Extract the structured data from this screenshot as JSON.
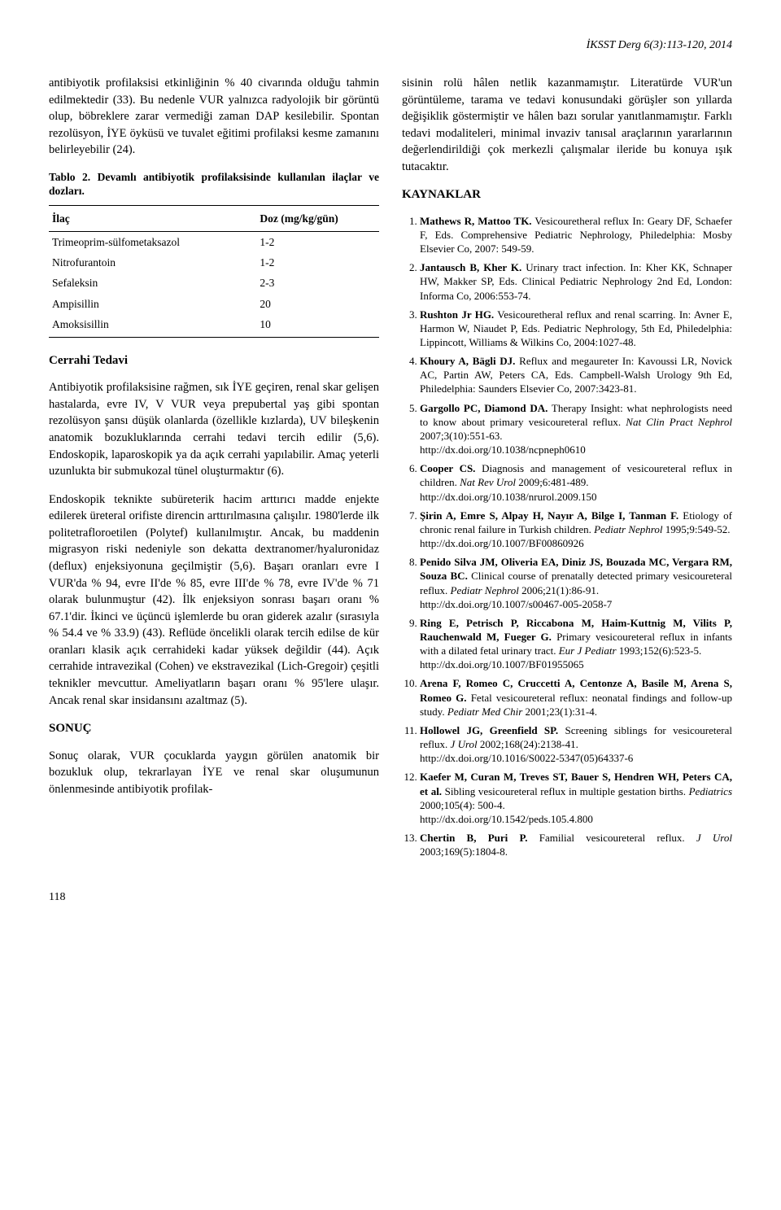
{
  "running_head": "İKSST Derg 6(3):113-120, 2014",
  "page_number": "118",
  "left": {
    "para1": "antibiyotik profilaksisi etkinliğinin % 40 civarında olduğu tahmin edilmektedir (33). Bu nedenle VUR yalnızca radyolojik bir görüntü olup, böbreklere zarar vermediği zaman DAP kesilebilir. Spontan rezolüsyon, İYE öyküsü ve tuvalet eğitimi profilaksi kesme zamanını belirleyebilir (24).",
    "table_caption": "Tablo 2. Devamlı antibiyotik profilaksisinde kullanılan ilaçlar ve dozları.",
    "table": {
      "col1_header": "İlaç",
      "col2_header": "Doz (mg/kg/gün)",
      "rows": [
        {
          "drug": "Trimeoprim-sülfometaksazol",
          "dose": "1-2"
        },
        {
          "drug": "Nitrofurantoin",
          "dose": "1-2"
        },
        {
          "drug": "Sefaleksin",
          "dose": "2-3"
        },
        {
          "drug": "Ampisillin",
          "dose": "20"
        },
        {
          "drug": "Amoksisillin",
          "dose": "10"
        }
      ]
    },
    "heading_cerrahi": "Cerrahi Tedavi",
    "para_cerrahi": "Antibiyotik profilaksisine rağmen, sık İYE geçiren, renal skar gelişen hastalarda, evre IV, V VUR veya prepubertal yaş gibi spontan rezolüsyon şansı düşük olanlarda (özellikle kızlarda), UV bileşkenin anatomik bozukluklarında cerrahi tedavi tercih edilir (5,6). Endoskopik, laparoskopik ya da açık cerrahi yapılabilir. Amaç yeterli uzunlukta bir submukozal tünel oluşturmaktır (6).",
    "para_endoskopik": "Endoskopik teknikte subüreterik hacim arttırıcı madde enjekte edilerek üreteral orifiste direncin arttırılmasına çalışılır. 1980'lerde ilk politetrafloroetilen (Polytef) kullanılmıştır. Ancak, bu maddenin migrasyon riski nedeniyle son dekatta dextranomer/hyaluronidaz (deflux) enjeksiyonuna geçilmiştir (5,6). Başarı oranları evre I VUR'da % 94, evre II'de % 85, evre III'de % 78, evre IV'de % 71 olarak bulunmuştur (42). İlk enjeksiyon sonrası başarı oranı % 67.1'dir. İkinci ve üçüncü işlemlerde bu oran giderek azalır (sırasıyla % 54.4 ve % 33.9) (43). Reflüde öncelikli olarak tercih edilse de kür oranları klasik açık cerrahideki kadar yüksek değildir (44). Açık cerrahide intravezikal (Cohen) ve ekstravezikal (Lich-Gregoir) çeşitli teknikler mevcuttur. Ameliyatların başarı oranı % 95'lere ulaşır. Ancak renal skar insidansını azaltmaz (5).",
    "heading_sonuc": "SONUÇ",
    "para_sonuc": "Sonuç olarak, VUR çocuklarda yaygın görülen anatomik bir bozukluk olup, tekrarlayan İYE ve renal skar oluşumunun önlenmesinde antibiyotik profilak-"
  },
  "right": {
    "para_top": "sisinin rolü hâlen netlik kazanmamıştır. Literatürde VUR'un görüntüleme, tarama ve tedavi konusundaki görüşler son yıllarda değişiklik göstermiştir ve hâlen bazı sorular yanıtlanmamıştır. Farklı tedavi modaliteleri, minimal invaziv tanısal araçlarının yararlarının değerlendirildiği çok merkezli çalışmalar ileride bu konuya ışık tutacaktır.",
    "refs_head": "KAYNAKLAR",
    "refs": [
      {
        "authors": "Mathews R, Mattoo TK.",
        "rest_a": " Vesicouretheral reflux In: Geary DF, Schaefer F, Eds. Comprehensive Pediatric Nephrology, Philedelphia: Mosby Elsevier Co, 2007: 549-59."
      },
      {
        "authors": "Jantausch B, Kher K.",
        "rest_a": " Urinary tract infection. In: Kher KK, Schnaper HW, Makker SP, Eds. Clinical Pediatric Nephrology 2nd Ed, London: Informa Co, 2006:553-74."
      },
      {
        "authors": "Rushton Jr HG.",
        "rest_a": " Vesicouretheral reflux and renal scarring. In: Avner E, Harmon W, Niaudet P, Eds. Pediatric Nephrology, 5th Ed, Philedelphia: Lippincott, Williams & Wilkins Co, 2004:1027-48."
      },
      {
        "authors": "Khoury A, Bägli DJ.",
        "rest_a": " Reflux and megaureter In: Kavoussi LR, Novick AC, Partin AW, Peters CA, Eds. Campbell-Walsh Urology 9th Ed, Philedelphia: Saunders Elsevier Co, 2007:3423-81."
      },
      {
        "authors": "Gargollo PC, Diamond DA.",
        "rest_a": " Therapy Insight: what nephrologists need to know about primary vesicoureteral reflux. ",
        "journal": "Nat Clin Pract Nephrol",
        "rest_b": " 2007;3(10):551-63.",
        "doi": "http://dx.doi.org/10.1038/ncpneph0610"
      },
      {
        "authors": "Cooper CS.",
        "rest_a": " Diagnosis and management of vesicoureteral reflux in children. ",
        "journal": "Nat Rev Urol",
        "rest_b": " 2009;6:481-489.",
        "doi": "http://dx.doi.org/10.1038/nrurol.2009.150"
      },
      {
        "authors": "Şirin A, Emre S, Alpay H, Nayır A, Bilge I, Tanman F.",
        "rest_a": " Etiology of chronic renal failure in Turkish children. ",
        "journal": "Pediatr Nephrol",
        "rest_b": " 1995;9:549-52.",
        "doi": "http://dx.doi.org/10.1007/BF00860926"
      },
      {
        "authors": "Penido Silva JM, Oliveria EA, Diniz JS, Bouzada MC, Vergara RM, Souza BC.",
        "rest_a": " Clinical course of prenatally detected primary vesicoureteral reflux. ",
        "journal": "Pediatr Nephrol",
        "rest_b": " 2006;21(1):86-91.",
        "doi": "http://dx.doi.org/10.1007/s00467-005-2058-7"
      },
      {
        "authors": "Ring E, Petrisch P, Riccabona M, Haim-Kuttnig M, Vilits P, Rauchenwald M, Fueger G.",
        "rest_a": " Primary vesicoureteral reflux in infants with a dilated fetal urinary tract. ",
        "journal": "Eur J Pediatr",
        "rest_b": " 1993;152(6):523-5.",
        "doi": "http://dx.doi.org/10.1007/BF01955065"
      },
      {
        "authors": "Arena F, Romeo C, Cruccetti A, Centonze A, Basile M, Arena S, Romeo G.",
        "rest_a": " Fetal vesicoureteral reflux: neonatal findings and follow-up study. ",
        "journal": "Pediatr Med Chir",
        "rest_b": " 2001;23(1):31-4."
      },
      {
        "authors": "Hollowel JG, Greenfield SP.",
        "rest_a": " Screening siblings for vesicoureteral reflux. ",
        "journal": "J Urol",
        "rest_b": " 2002;168(24):2138-41.",
        "doi": "http://dx.doi.org/10.1016/S0022-5347(05)64337-6"
      },
      {
        "authors": "Kaefer M, Curan M, Treves ST, Bauer S, Hendren WH, Peters CA, et al.",
        "rest_a": " Sibling vesicoureteral reflux in multiple gestation births. ",
        "journal": "Pediatrics",
        "rest_b": " 2000;105(4): 500-4.",
        "doi": "http://dx.doi.org/10.1542/peds.105.4.800"
      },
      {
        "authors": "Chertin B, Puri P.",
        "rest_a": " Familial vesicoureteral reflux. ",
        "journal": "J Urol",
        "rest_b": " 2003;169(5):1804-8."
      }
    ]
  }
}
